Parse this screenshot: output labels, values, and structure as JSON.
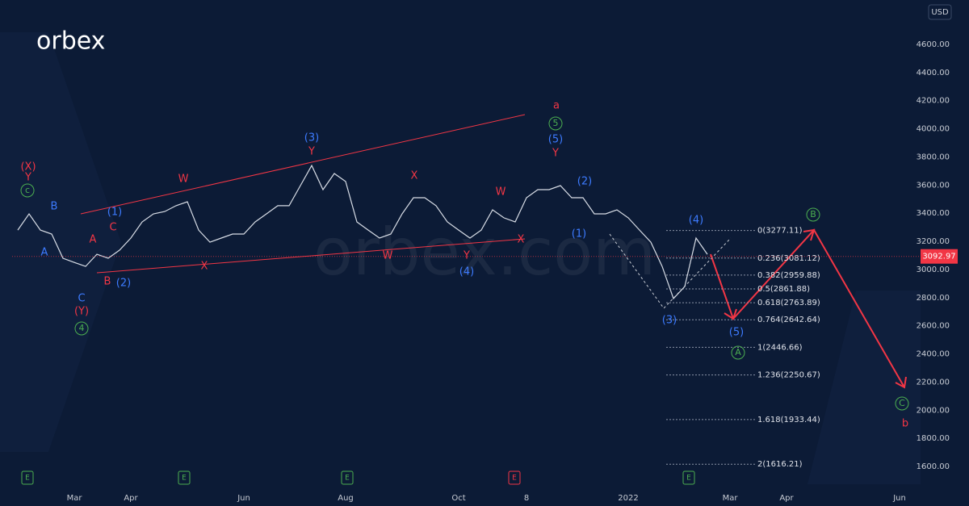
{
  "chart_data": {
    "type": "line",
    "brand": "orbex",
    "watermark": "orbex.com",
    "currency": "USD",
    "categories": [
      null,
      null,
      null,
      null,
      null,
      "Mar",
      null,
      null,
      null,
      null,
      "Apr",
      null,
      null,
      null,
      null,
      null,
      null,
      null,
      null,
      null,
      "Jun",
      null,
      null,
      null,
      null,
      null,
      null,
      null,
      null,
      "Aug",
      null,
      null,
      null,
      null,
      null,
      null,
      null,
      null,
      null,
      "Oct",
      null,
      null,
      null,
      null,
      null,
      "8",
      null,
      null,
      null,
      null,
      null,
      null,
      null,
      null,
      "2022",
      null,
      null,
      null,
      null,
      null,
      null,
      null,
      null,
      "Mar",
      null,
      null,
      null,
      null,
      "Apr",
      null,
      null,
      null,
      null,
      null,
      null,
      null,
      null,
      null,
      "Jun",
      null
    ],
    "series": [
      {
        "color": "#d8dde6",
        "values": [
          3280,
          3395,
          3280,
          3252,
          3080,
          3050,
          3022,
          3108,
          3080,
          3137,
          3223,
          3338,
          3395,
          3412,
          3453,
          3481,
          3280,
          3194,
          3223,
          3252,
          3252,
          3338,
          3395,
          3453,
          3453,
          3596,
          3739,
          3567,
          3682,
          3625,
          3338,
          3280,
          3223,
          3252,
          3395,
          3510,
          3510,
          3453,
          3338,
          3280,
          3223,
          3280,
          3424,
          3367,
          3338,
          3510,
          3567,
          3567,
          3596,
          3510,
          3510,
          3395,
          3395,
          3424,
          3367,
          3280,
          3194,
          3022,
          2793,
          2879,
          3223,
          3108,
          null,
          null,
          null,
          null,
          null,
          null,
          null,
          null,
          null,
          null,
          null,
          null,
          null,
          null,
          null,
          null,
          null,
          null
        ]
      }
    ],
    "ylim": [
      1474,
      4915
    ],
    "yticks": [
      {
        "value": 1600,
        "label": "1600.00"
      },
      {
        "value": 1800,
        "label": "1800.00"
      },
      {
        "value": 2000,
        "label": "2000.00"
      },
      {
        "value": 2200,
        "label": "2200.00"
      },
      {
        "value": 2400,
        "label": "2400.00"
      },
      {
        "value": 2600,
        "label": "2600.00"
      },
      {
        "value": 2800,
        "label": "2800.00"
      },
      {
        "value": 3000,
        "label": "3000.00"
      },
      {
        "value": 3200,
        "label": "3200.00"
      },
      {
        "value": 3400,
        "label": "3400.00"
      },
      {
        "value": 3600,
        "label": "3600.00"
      },
      {
        "value": 3800,
        "label": "3800.00"
      },
      {
        "value": 4000,
        "label": "4000.00"
      },
      {
        "value": 4200,
        "label": "4200.00"
      },
      {
        "value": 4400,
        "label": "4400.00"
      },
      {
        "value": 4600,
        "label": "4600.00"
      }
    ],
    "last_price": 3092.97,
    "fib_levels": [
      {
        "value": 3277.11,
        "label": "0(3277.11)"
      },
      {
        "value": 3081.12,
        "label": "0.236(3081.12)"
      },
      {
        "value": 2959.88,
        "label": "0.382(2959.88)"
      },
      {
        "value": 2861.88,
        "label": "0.5(2861.88)"
      },
      {
        "value": 2763.89,
        "label": "0.618(2763.89)"
      },
      {
        "value": 2642.64,
        "label": "0.764(2642.64)"
      },
      {
        "value": 2446.66,
        "label": "1(2446.66)"
      },
      {
        "value": 2250.67,
        "label": "1.236(2250.67)"
      },
      {
        "value": 1933.44,
        "label": "1.618(1933.44)"
      },
      {
        "value": 1616.21,
        "label": "2(1616.21)"
      }
    ],
    "event_markers": [
      "E",
      "E",
      "E",
      "E",
      "E"
    ],
    "annotations": [
      {
        "text": "(X)",
        "color": "#f23645"
      },
      {
        "text": "Y",
        "color": "#f23645"
      },
      {
        "text": "c",
        "color": "#4caf50",
        "circled": true
      },
      {
        "text": "B",
        "color": "#3d7bff"
      },
      {
        "text": "A",
        "color": "#3d7bff"
      },
      {
        "text": "C",
        "color": "#3d7bff"
      },
      {
        "text": "(Y)",
        "color": "#f23645"
      },
      {
        "text": "4",
        "color": "#4caf50",
        "circled": true
      },
      {
        "text": "A",
        "color": "#f23645"
      },
      {
        "text": "C",
        "color": "#f23645"
      },
      {
        "text": "(1)",
        "color": "#3d7bff"
      },
      {
        "text": "B",
        "color": "#f23645"
      },
      {
        "text": "(2)",
        "color": "#3d7bff"
      },
      {
        "text": "W",
        "color": "#f23645"
      },
      {
        "text": "X",
        "color": "#f23645"
      },
      {
        "text": "(3)",
        "color": "#3d7bff"
      },
      {
        "text": "Y",
        "color": "#f23645"
      },
      {
        "text": "X",
        "color": "#f23645"
      },
      {
        "text": "W",
        "color": "#f23645"
      },
      {
        "text": "W",
        "color": "#f23645"
      },
      {
        "text": "X",
        "color": "#f23645"
      },
      {
        "text": "Y",
        "color": "#f23645"
      },
      {
        "text": "(4)",
        "color": "#3d7bff"
      },
      {
        "text": "a",
        "color": "#f23645"
      },
      {
        "text": "5",
        "color": "#4caf50",
        "circled": true
      },
      {
        "text": "(5)",
        "color": "#3d7bff"
      },
      {
        "text": "Y",
        "color": "#f23645"
      },
      {
        "text": "(2)",
        "color": "#3d7bff"
      },
      {
        "text": "(1)",
        "color": "#3d7bff"
      },
      {
        "text": "(3)",
        "color": "#3d7bff"
      },
      {
        "text": "(4)",
        "color": "#3d7bff"
      },
      {
        "text": "(5)",
        "color": "#3d7bff"
      },
      {
        "text": "A",
        "color": "#4caf50",
        "circled": true
      },
      {
        "text": "B",
        "color": "#4caf50",
        "circled": true
      },
      {
        "text": "C",
        "color": "#4caf50",
        "circled": true
      },
      {
        "text": "b",
        "color": "#f23645"
      }
    ]
  }
}
